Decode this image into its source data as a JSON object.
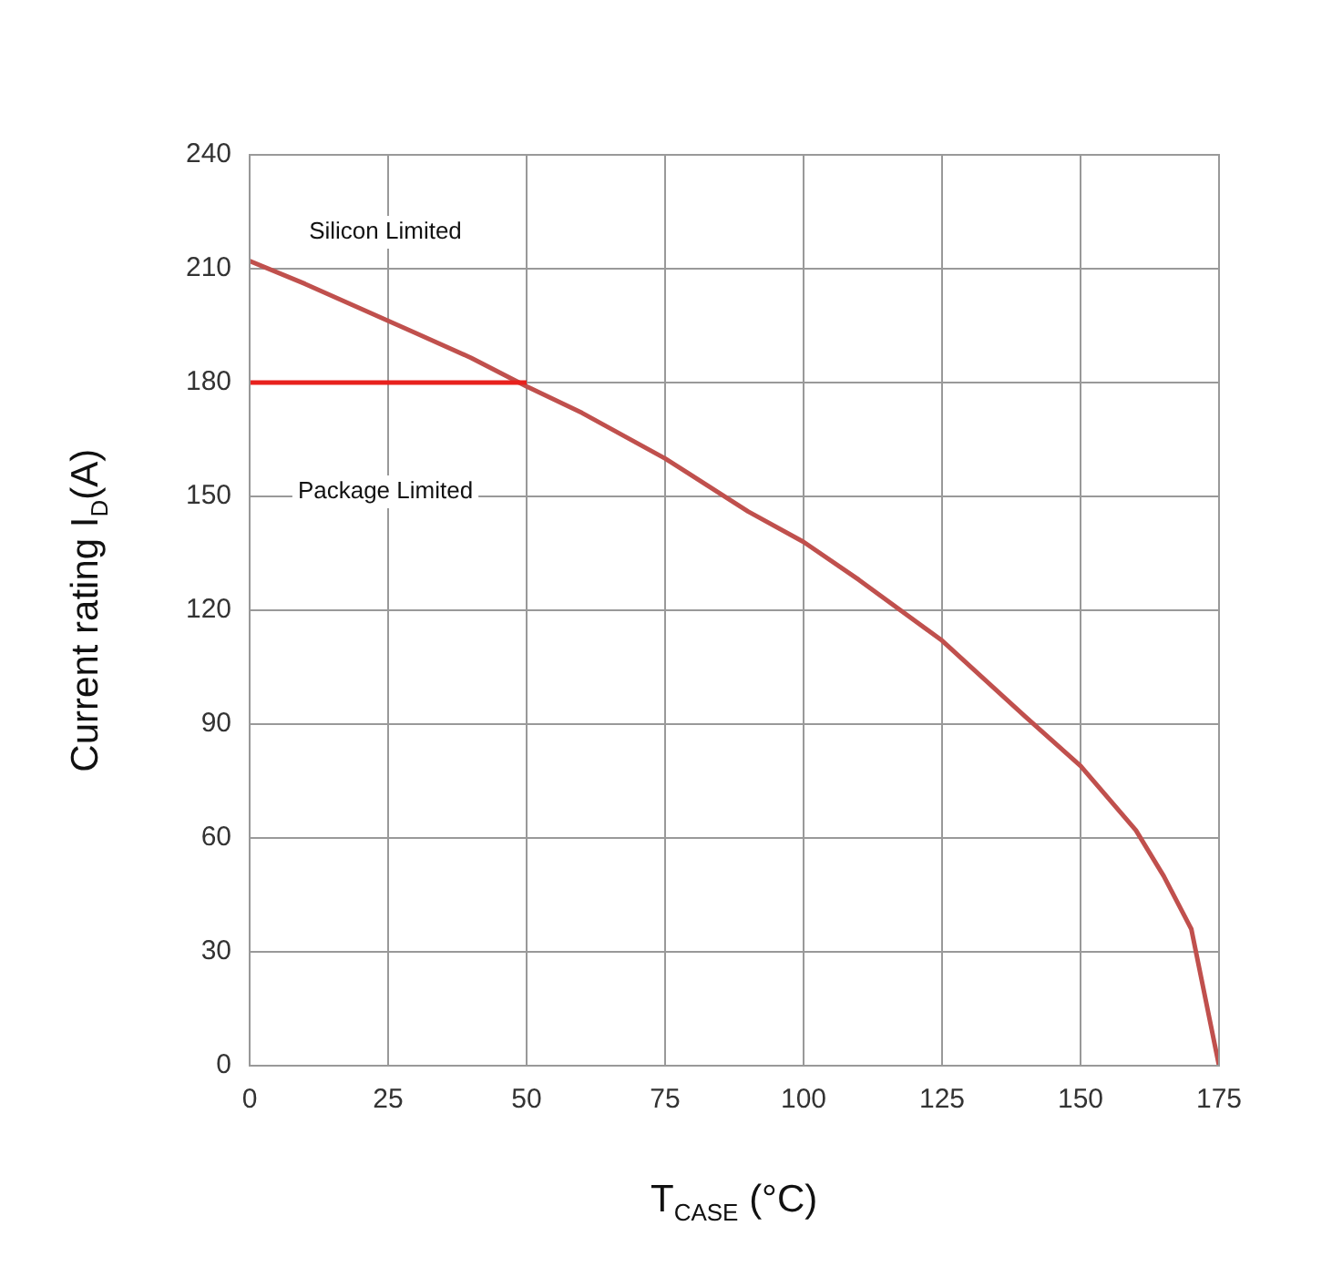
{
  "chart_data": {
    "type": "line",
    "xlabel": "T$_{CASE}$ (°C)",
    "ylabel": "Current rating I$_{D}$(A)",
    "xlim": [
      0,
      175
    ],
    "xticks": [
      0,
      25,
      50,
      75,
      100,
      125,
      150,
      175
    ],
    "ylim": [
      0,
      240
    ],
    "yticks": [
      0,
      30,
      60,
      90,
      120,
      150,
      180,
      210,
      240
    ],
    "grid": true,
    "legend": false,
    "marker": "none",
    "line_style": "solid",
    "series": [
      {
        "color": "#e8211d",
        "x": [
          0,
          50
        ],
        "values": [
          180,
          180
        ]
      },
      {
        "color": "#c0504d",
        "x": [
          0,
          10,
          20,
          30,
          40,
          50,
          60,
          75,
          90,
          100,
          110,
          125,
          140,
          150,
          160,
          165,
          170,
          175
        ],
        "values": [
          212,
          206,
          199.5,
          193,
          186.5,
          179,
          172,
          160,
          146,
          138,
          128,
          112,
          92,
          79,
          62,
          50,
          36,
          0
        ]
      }
    ],
    "annotations": [
      "Silicon Limited",
      "Package Limited"
    ]
  }
}
